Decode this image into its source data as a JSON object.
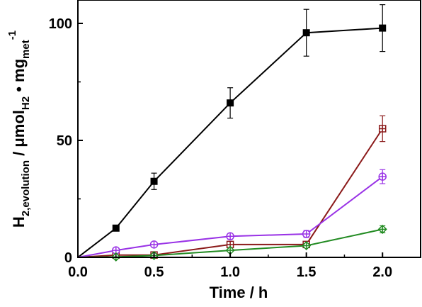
{
  "chart_data": {
    "type": "line",
    "xlabel": "Time / h",
    "ylabel": {
      "main": "H",
      "sub1": "2,evolution",
      "mid1": " / μmol",
      "sub2": "H2",
      "mid2": " • mg",
      "sub3": "met",
      "sup": "-1"
    },
    "xlim": [
      0,
      2.25
    ],
    "ylim": [
      0,
      110
    ],
    "xticks": [
      0.0,
      0.5,
      1.0,
      1.5,
      2.0
    ],
    "xtick_labels": [
      "0.0",
      "0.5",
      "1.0",
      "1.5",
      "2.0"
    ],
    "yticks": [
      0,
      50,
      100
    ],
    "ytick_labels": [
      "0",
      "50",
      "100"
    ],
    "grid": false,
    "series": [
      {
        "color": "#000000",
        "marker": "filled-square",
        "x": [
          0,
          0.25,
          0.5,
          1.0,
          1.5,
          2.0
        ],
        "y": [
          0,
          12.5,
          32.5,
          66,
          96,
          98
        ],
        "err": [
          0,
          1.0,
          3.5,
          6.5,
          10,
          10
        ]
      },
      {
        "color": "#8b1a1a",
        "marker": "crossed-square",
        "x": [
          0,
          0.25,
          0.5,
          1.0,
          1.5,
          2.0
        ],
        "y": [
          0,
          1.0,
          1.0,
          5.5,
          5.5,
          55
        ],
        "err": [
          0,
          0.5,
          0.5,
          1.0,
          1.0,
          5.5
        ]
      },
      {
        "color": "#9932e6",
        "marker": "crossed-circle",
        "x": [
          0,
          0.25,
          0.5,
          1.0,
          1.5,
          2.0
        ],
        "y": [
          0,
          3.0,
          5.5,
          9.0,
          10.0,
          34.5
        ],
        "err": [
          0,
          0.8,
          1.0,
          1.2,
          1.5,
          3.0
        ]
      },
      {
        "color": "#228b22",
        "marker": "crossed-diamond",
        "x": [
          0,
          0.25,
          0.5,
          1.0,
          1.5,
          2.0
        ],
        "y": [
          0,
          0.2,
          0.8,
          3.0,
          5.0,
          12.0
        ],
        "err": [
          0,
          0.3,
          0.3,
          0.5,
          0.8,
          1.5
        ]
      }
    ]
  }
}
